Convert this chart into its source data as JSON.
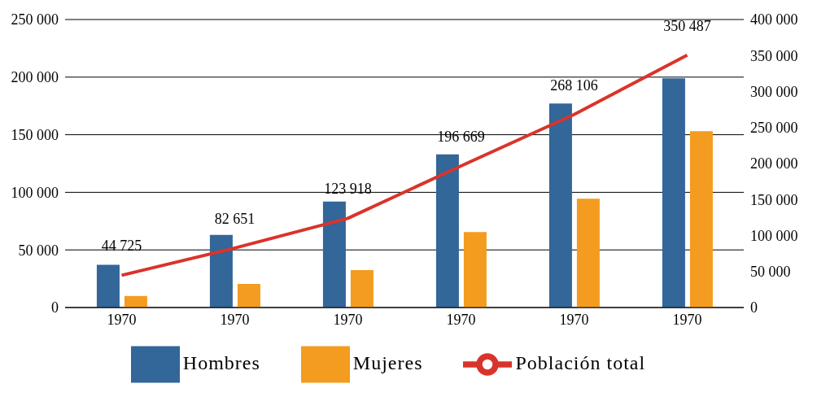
{
  "chart_data": {
    "type": "bar",
    "categories": [
      "1970",
      "1970",
      "1970",
      "1970",
      "1970",
      "1970"
    ],
    "series": [
      {
        "name": "Hombres",
        "color": "#336699",
        "values": [
          37000,
          63000,
          92000,
          133000,
          177000,
          199000
        ]
      },
      {
        "name": "Mujeres",
        "color": "#f39c1f",
        "values": [
          10000,
          20500,
          32500,
          65500,
          94500,
          153000
        ]
      },
      {
        "name": "Población total",
        "type": "line",
        "axis": "y2",
        "color": "#d9342b",
        "values": [
          44725,
          82651,
          123918,
          196669,
          268106,
          350487
        ],
        "value_labels": [
          "44 725",
          "82 651",
          "123 918",
          "196 669",
          "268 106",
          "350 487"
        ]
      }
    ],
    "ylim": [
      0,
      250000
    ],
    "yticks": [
      {
        "value": 0,
        "label": "0"
      },
      {
        "value": 50000,
        "label": "50 000"
      },
      {
        "value": 100000,
        "label": "100 000"
      },
      {
        "value": 150000,
        "label": "150 000"
      },
      {
        "value": 200000,
        "label": "200 000"
      },
      {
        "value": 250000,
        "label": "250 000"
      }
    ],
    "y2lim": [
      0,
      400000
    ],
    "y2ticks": [
      {
        "value": 0,
        "label": "0"
      },
      {
        "value": 50000,
        "label": "50 000"
      },
      {
        "value": 100000,
        "label": "100 000"
      },
      {
        "value": 150000,
        "label": "150 000"
      },
      {
        "value": 200000,
        "label": "200 000"
      },
      {
        "value": 250000,
        "label": "250 000"
      },
      {
        "value": 300000,
        "label": "300 000"
      },
      {
        "value": 350000,
        "label": "350 000"
      },
      {
        "value": 400000,
        "label": "400 000"
      }
    ],
    "grid": "y",
    "legend": "bottom",
    "marker": "none"
  }
}
